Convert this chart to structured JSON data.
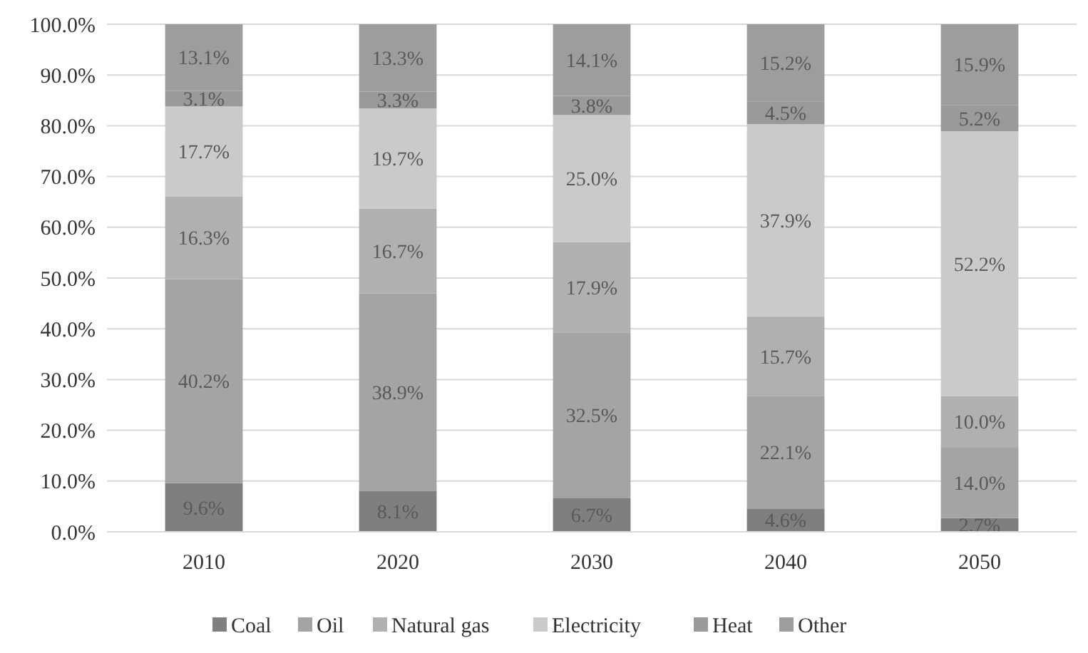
{
  "chart_data": {
    "type": "bar",
    "stacked": true,
    "categories": [
      "2010",
      "2020",
      "2030",
      "2040",
      "2050"
    ],
    "series": [
      {
        "name": "Coal",
        "color": "#7f7f81",
        "values": [
          9.6,
          8.1,
          6.7,
          4.6,
          2.7
        ],
        "value_labels": [
          "9.6%",
          "8.1%",
          "6.7%",
          "4.6%",
          "2.7%"
        ]
      },
      {
        "name": "Oil",
        "color": "#a4a4a6",
        "values": [
          40.2,
          38.9,
          32.5,
          22.1,
          14.0
        ],
        "value_labels": [
          "40.2%",
          "38.9%",
          "32.5%",
          "22.1%",
          "14.0%"
        ]
      },
      {
        "name": "Natural gas",
        "color": "#b0b0b2",
        "values": [
          16.3,
          16.7,
          17.9,
          15.7,
          10.0
        ],
        "value_labels": [
          "16.3%",
          "16.7%",
          "17.9%",
          "15.7%",
          "10.0%"
        ]
      },
      {
        "name": "Electricity",
        "color": "#cacacb",
        "values": [
          17.7,
          19.7,
          25.0,
          37.9,
          52.2
        ],
        "value_labels": [
          "17.7%",
          "19.7%",
          "25.0%",
          "37.9%",
          "52.2%"
        ]
      },
      {
        "name": "Heat",
        "color": "#9a9a9c",
        "values": [
          3.1,
          3.3,
          3.8,
          4.5,
          5.2
        ],
        "value_labels": [
          "3.1%",
          "3.3%",
          "3.8%",
          "4.5%",
          "5.2%"
        ]
      },
      {
        "name": "Other",
        "color": "#9d9d9f",
        "values": [
          13.1,
          13.3,
          14.1,
          15.2,
          15.9
        ],
        "value_labels": [
          "13.1%",
          "13.3%",
          "14.1%",
          "15.2%",
          "15.9%"
        ]
      }
    ],
    "ylim": [
      0,
      100
    ],
    "yticks": [
      {
        "value": 0,
        "label": "0.0%"
      },
      {
        "value": 10,
        "label": "10.0%"
      },
      {
        "value": 20,
        "label": "20.0%"
      },
      {
        "value": 30,
        "label": "30.0%"
      },
      {
        "value": 40,
        "label": "40.0%"
      },
      {
        "value": 50,
        "label": "50.0%"
      },
      {
        "value": 60,
        "label": "60.0%"
      },
      {
        "value": 70,
        "label": "70.0%"
      },
      {
        "value": 80,
        "label": "80.0%"
      },
      {
        "value": 90,
        "label": "90.0%"
      },
      {
        "value": 100,
        "label": "100.0%"
      }
    ],
    "grid": "y",
    "legend": "bottom"
  }
}
